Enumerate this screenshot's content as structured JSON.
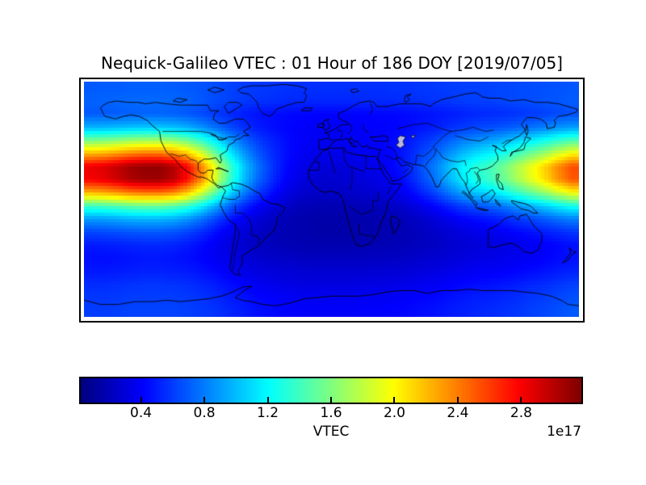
{
  "figure": {
    "title": "Nequick-Galileo VTEC : 01 Hour of 186 DOY [2019/07/05]",
    "background_color": "#ffffff"
  },
  "chart_data": {
    "type": "heatmap",
    "title": "Nequick-Galileo VTEC : 01 Hour of 186 DOY [2019/07/05]",
    "map": {
      "projection": "equirectangular-world",
      "lon_range": [
        -180,
        180
      ],
      "lat_range": [
        -85,
        85
      ],
      "coastlines": true,
      "country_borders": true,
      "lake_fill_color": "#b6b6e0"
    },
    "colormap": "jet",
    "vmin": 0.02,
    "vmax": 3.18,
    "value_units": "VTEC x 1e17",
    "lon_centers": [
      -175,
      -165,
      -155,
      -145,
      -135,
      -125,
      -115,
      -105,
      -95,
      -85,
      -75,
      -65,
      -55,
      -45,
      -35,
      -25,
      -15,
      -5,
      5,
      15,
      25,
      35,
      45,
      55,
      65,
      75,
      85,
      95,
      105,
      115,
      125,
      135,
      145,
      155,
      165,
      175
    ],
    "lat_centers": [
      80.3,
      70.8,
      61.4,
      51.9,
      42.5,
      33.1,
      23.6,
      14.2,
      4.7,
      -4.7,
      -14.2,
      -23.6,
      -33.1,
      -42.5,
      -51.9,
      -61.4,
      -70.8,
      -80.3
    ],
    "values": [
      [
        0.69,
        0.7,
        0.7,
        0.71,
        0.71,
        0.71,
        0.7,
        0.69,
        0.67,
        0.65,
        0.62,
        0.6,
        0.59,
        0.58,
        0.57,
        0.56,
        0.56,
        0.56,
        0.56,
        0.56,
        0.56,
        0.56,
        0.57,
        0.57,
        0.58,
        0.59,
        0.6,
        0.61,
        0.61,
        0.62,
        0.63,
        0.64,
        0.65,
        0.66,
        0.67,
        0.68
      ],
      [
        0.72,
        0.72,
        0.73,
        0.74,
        0.74,
        0.74,
        0.73,
        0.72,
        0.69,
        0.65,
        0.62,
        0.59,
        0.57,
        0.56,
        0.54,
        0.54,
        0.53,
        0.53,
        0.53,
        0.53,
        0.54,
        0.54,
        0.54,
        0.55,
        0.56,
        0.57,
        0.58,
        0.6,
        0.61,
        0.61,
        0.63,
        0.64,
        0.65,
        0.67,
        0.68,
        0.7
      ],
      [
        0.69,
        0.69,
        0.7,
        0.71,
        0.72,
        0.72,
        0.71,
        0.68,
        0.64,
        0.59,
        0.54,
        0.5,
        0.47,
        0.45,
        0.44,
        0.43,
        0.42,
        0.42,
        0.42,
        0.42,
        0.42,
        0.43,
        0.43,
        0.44,
        0.46,
        0.47,
        0.49,
        0.51,
        0.53,
        0.54,
        0.55,
        0.57,
        0.59,
        0.61,
        0.64,
        0.66
      ],
      [
        0.98,
        0.99,
        1.01,
        1.03,
        1.04,
        1.04,
        1.02,
        0.97,
        0.88,
        0.77,
        0.66,
        0.57,
        0.5,
        0.46,
        0.43,
        0.41,
        0.39,
        0.39,
        0.39,
        0.39,
        0.4,
        0.41,
        0.42,
        0.44,
        0.47,
        0.5,
        0.55,
        0.59,
        0.63,
        0.65,
        0.68,
        0.72,
        0.77,
        0.81,
        0.87,
        0.91
      ],
      [
        1.58,
        1.61,
        1.65,
        1.7,
        1.72,
        1.72,
        1.67,
        1.56,
        1.38,
        1.16,
        0.93,
        0.75,
        0.62,
        0.53,
        0.46,
        0.41,
        0.39,
        0.38,
        0.38,
        0.39,
        0.4,
        0.41,
        0.44,
        0.48,
        0.55,
        0.62,
        0.71,
        0.8,
        0.86,
        0.91,
        0.98,
        1.07,
        1.16,
        1.25,
        1.36,
        1.45
      ],
      [
        2.22,
        2.25,
        2.32,
        2.39,
        2.43,
        2.43,
        2.36,
        2.18,
        1.9,
        1.55,
        1.2,
        0.92,
        0.71,
        0.57,
        0.47,
        0.4,
        0.36,
        0.35,
        0.35,
        0.36,
        0.37,
        0.4,
        0.43,
        0.5,
        0.61,
        0.71,
        0.85,
        0.99,
        1.1,
        1.17,
        1.27,
        1.41,
        1.55,
        1.69,
        1.87,
        2.01
      ],
      [
        2.84,
        2.89,
        2.98,
        3.08,
        3.12,
        3.12,
        3.03,
        2.79,
        2.41,
        1.94,
        1.46,
        1.08,
        0.8,
        0.61,
        0.46,
        0.37,
        0.32,
        0.3,
        0.3,
        0.32,
        0.34,
        0.37,
        0.42,
        0.51,
        0.65,
        0.8,
        0.99,
        1.18,
        1.32,
        1.41,
        1.56,
        1.75,
        1.94,
        2.13,
        2.36,
        2.55
      ],
      [
        2.81,
        2.86,
        2.95,
        3.05,
        3.09,
        3.09,
        3.0,
        2.76,
        2.38,
        1.91,
        1.43,
        1.05,
        0.77,
        0.58,
        0.43,
        0.34,
        0.29,
        0.27,
        0.27,
        0.29,
        0.31,
        0.34,
        0.39,
        0.48,
        0.62,
        0.77,
        0.96,
        1.15,
        1.29,
        1.38,
        1.53,
        1.72,
        1.91,
        2.1,
        2.33,
        2.52
      ],
      [
        2.24,
        2.28,
        2.35,
        2.43,
        2.46,
        2.46,
        2.39,
        2.2,
        1.9,
        1.53,
        1.15,
        0.85,
        0.63,
        0.48,
        0.36,
        0.29,
        0.25,
        0.24,
        0.24,
        0.25,
        0.27,
        0.29,
        0.33,
        0.4,
        0.51,
        0.63,
        0.78,
        0.93,
        1.04,
        1.11,
        1.23,
        1.38,
        1.53,
        1.68,
        1.86,
        2.01
      ],
      [
        1.38,
        1.41,
        1.45,
        1.5,
        1.52,
        1.52,
        1.47,
        1.36,
        1.18,
        0.96,
        0.73,
        0.55,
        0.42,
        0.33,
        0.26,
        0.21,
        0.19,
        0.18,
        0.18,
        0.19,
        0.2,
        0.21,
        0.24,
        0.28,
        0.35,
        0.42,
        0.51,
        0.6,
        0.66,
        0.71,
        0.78,
        0.87,
        0.96,
        1.05,
        1.16,
        1.25
      ],
      [
        0.9,
        0.91,
        0.94,
        0.97,
        0.98,
        0.98,
        0.95,
        0.88,
        0.77,
        0.63,
        0.49,
        0.38,
        0.3,
        0.24,
        0.2,
        0.17,
        0.16,
        0.15,
        0.15,
        0.16,
        0.16,
        0.17,
        0.18,
        0.21,
        0.25,
        0.3,
        0.35,
        0.41,
        0.45,
        0.48,
        0.52,
        0.58,
        0.63,
        0.69,
        0.76,
        0.81
      ],
      [
        0.63,
        0.64,
        0.66,
        0.68,
        0.69,
        0.69,
        0.67,
        0.62,
        0.55,
        0.46,
        0.37,
        0.3,
        0.25,
        0.21,
        0.18,
        0.17,
        0.16,
        0.15,
        0.15,
        0.16,
        0.16,
        0.17,
        0.17,
        0.19,
        0.22,
        0.25,
        0.28,
        0.32,
        0.35,
        0.36,
        0.39,
        0.43,
        0.46,
        0.5,
        0.54,
        0.58
      ],
      [
        0.49,
        0.5,
        0.51,
        0.52,
        0.53,
        0.53,
        0.52,
        0.49,
        0.44,
        0.38,
        0.32,
        0.27,
        0.23,
        0.21,
        0.19,
        0.18,
        0.17,
        0.17,
        0.17,
        0.17,
        0.18,
        0.18,
        0.19,
        0.2,
        0.22,
        0.23,
        0.26,
        0.28,
        0.3,
        0.31,
        0.33,
        0.35,
        0.38,
        0.4,
        0.43,
        0.46
      ],
      [
        0.45,
        0.45,
        0.46,
        0.47,
        0.48,
        0.48,
        0.47,
        0.45,
        0.42,
        0.38,
        0.34,
        0.3,
        0.27,
        0.25,
        0.24,
        0.23,
        0.22,
        0.22,
        0.22,
        0.22,
        0.22,
        0.23,
        0.23,
        0.24,
        0.26,
        0.27,
        0.29,
        0.31,
        0.33,
        0.34,
        0.35,
        0.37,
        0.39,
        0.41,
        0.44,
        0.46
      ],
      [
        0.48,
        0.48,
        0.49,
        0.5,
        0.51,
        0.51,
        0.5,
        0.49,
        0.46,
        0.43,
        0.39,
        0.35,
        0.32,
        0.3,
        0.29,
        0.28,
        0.27,
        0.27,
        0.27,
        0.27,
        0.27,
        0.28,
        0.28,
        0.29,
        0.31,
        0.32,
        0.34,
        0.36,
        0.38,
        0.39,
        0.4,
        0.42,
        0.44,
        0.46,
        0.49,
        0.51
      ],
      [
        0.55,
        0.55,
        0.56,
        0.57,
        0.58,
        0.58,
        0.57,
        0.56,
        0.53,
        0.5,
        0.45,
        0.42,
        0.38,
        0.36,
        0.34,
        0.33,
        0.32,
        0.32,
        0.32,
        0.32,
        0.33,
        0.33,
        0.34,
        0.35,
        0.37,
        0.38,
        0.41,
        0.43,
        0.45,
        0.46,
        0.48,
        0.5,
        0.53,
        0.55,
        0.58,
        0.61
      ],
      [
        0.58,
        0.58,
        0.59,
        0.6,
        0.6,
        0.6,
        0.6,
        0.59,
        0.57,
        0.54,
        0.5,
        0.47,
        0.43,
        0.41,
        0.39,
        0.38,
        0.37,
        0.37,
        0.37,
        0.37,
        0.38,
        0.38,
        0.39,
        0.4,
        0.42,
        0.43,
        0.46,
        0.48,
        0.5,
        0.51,
        0.53,
        0.55,
        0.58,
        0.6,
        0.63,
        0.66
      ],
      [
        0.6,
        0.6,
        0.61,
        0.62,
        0.62,
        0.62,
        0.62,
        0.61,
        0.59,
        0.57,
        0.53,
        0.5,
        0.46,
        0.44,
        0.42,
        0.41,
        0.4,
        0.4,
        0.4,
        0.4,
        0.41,
        0.41,
        0.42,
        0.43,
        0.45,
        0.46,
        0.49,
        0.51,
        0.53,
        0.54,
        0.56,
        0.58,
        0.61,
        0.63,
        0.66,
        0.69
      ]
    ],
    "colorbar": {
      "orientation": "horizontal",
      "label": "VTEC",
      "offset_label": "1e17",
      "ticks": [
        0.4,
        0.8,
        1.2,
        1.6,
        2.0,
        2.4,
        2.8
      ]
    }
  }
}
